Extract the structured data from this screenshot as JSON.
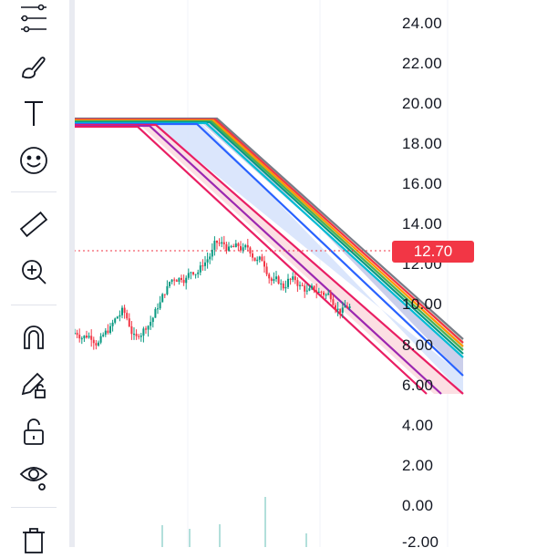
{
  "toolbar": {
    "tools": [
      {
        "id": "fib-channel",
        "icon": "fib-channel-icon"
      },
      {
        "id": "brush",
        "icon": "brush-icon"
      },
      {
        "id": "text",
        "icon": "text-icon"
      },
      {
        "id": "emoji",
        "icon": "emoji-icon"
      },
      {
        "id": "ruler",
        "icon": "ruler-icon"
      },
      {
        "id": "zoom-in",
        "icon": "zoom-in-icon"
      },
      {
        "id": "magnet",
        "icon": "magnet-icon"
      },
      {
        "id": "lock-drawing",
        "icon": "pencil-lock-icon"
      },
      {
        "id": "lock-all",
        "icon": "unlock-icon"
      },
      {
        "id": "hide",
        "icon": "eye-icon"
      },
      {
        "id": "delete",
        "icon": "trash-icon"
      }
    ]
  },
  "price_axis": {
    "labels": [
      "24.00",
      "22.00",
      "20.00",
      "18.00",
      "16.00",
      "14.00",
      "12.00",
      "10.00",
      "8.00",
      "6.00",
      "4.00",
      "2.00",
      "0.00",
      "-2.00"
    ]
  },
  "current_price": {
    "label": "12.70",
    "value": 12.7,
    "color": "#f23645"
  },
  "chart_data": {
    "type": "candlestick",
    "ylim": [
      -2,
      24
    ],
    "last_price": 12.7,
    "drawing": "fibonacci channel",
    "channel_colors": [
      "#787b86",
      "#f23645",
      "#ff9800",
      "#4caf50",
      "#089981",
      "#00bcd4",
      "#2962ff",
      "#9c27b0",
      "#e91e63"
    ]
  }
}
